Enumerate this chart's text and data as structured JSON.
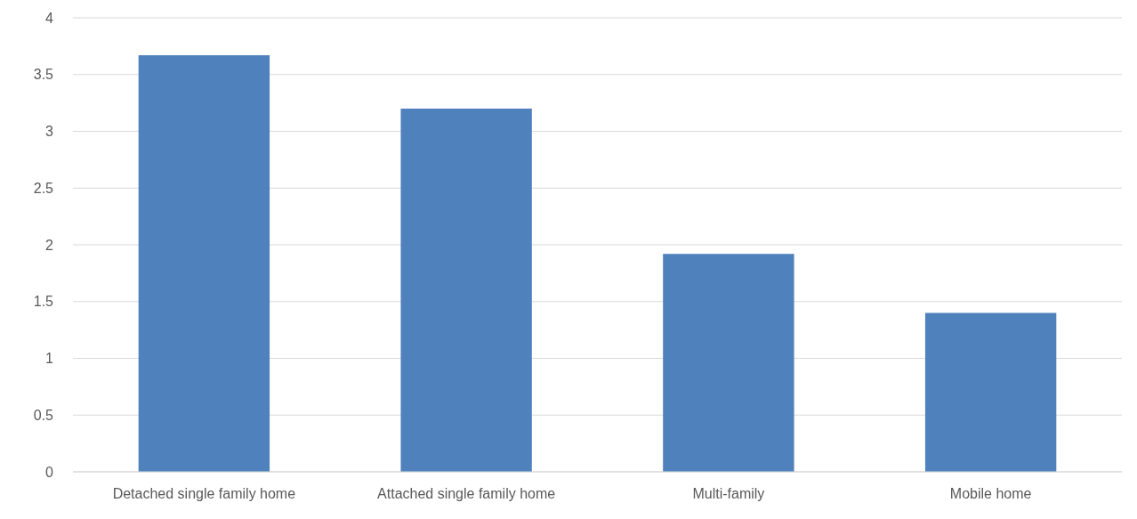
{
  "chart_data": {
    "type": "bar",
    "categories": [
      "Detached single family home",
      "Attached single family home",
      "Multi-family",
      "Mobile home"
    ],
    "values": [
      3.67,
      3.2,
      1.92,
      1.4
    ],
    "color": "#4f81bd",
    "ylim": [
      0,
      4
    ],
    "yticks": [
      0,
      0.5,
      1,
      1.5,
      2,
      2.5,
      3,
      3.5,
      4
    ],
    "grid": "y"
  }
}
